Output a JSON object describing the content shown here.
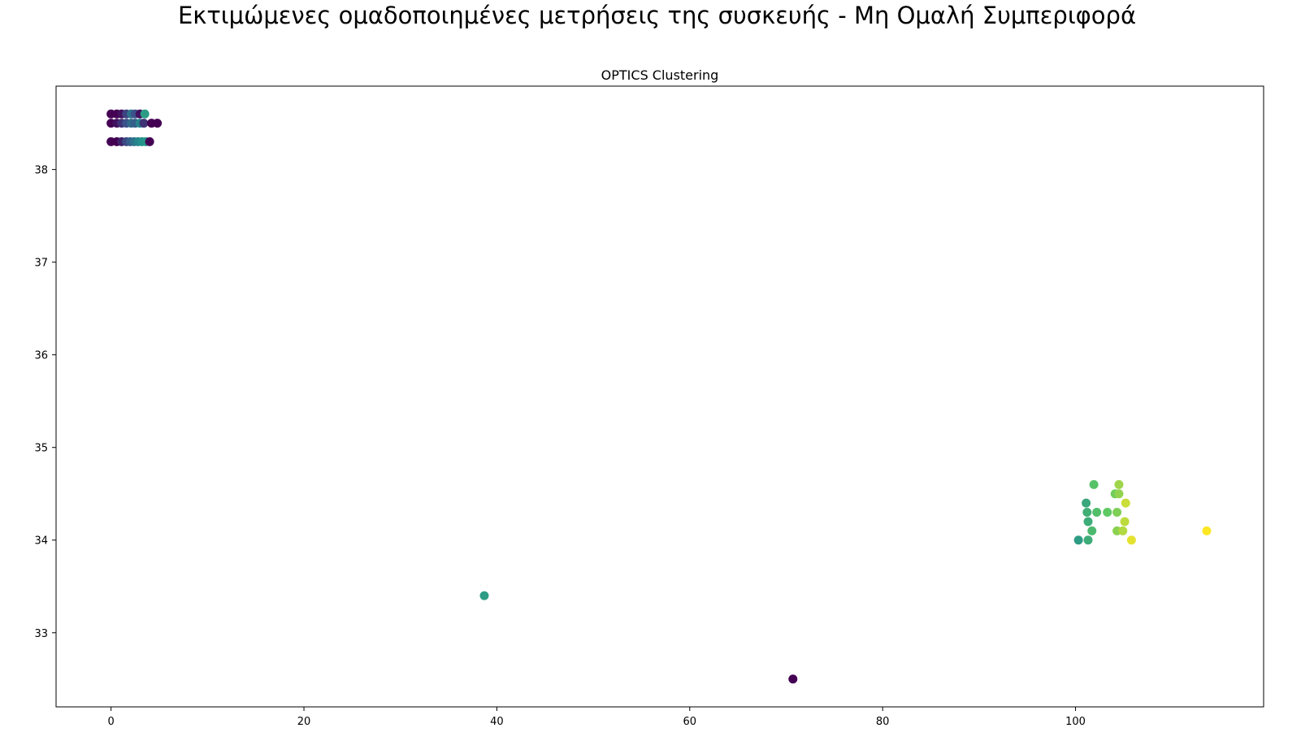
{
  "figure": {
    "suptitle": "Εκτιμώμενες ομαδοποιημένες μετρήσεις της συσκευής - Μη Ομαλή Συμπεριφορά"
  },
  "chart_data": {
    "type": "scatter",
    "title": "OPTICS Clustering",
    "xlabel": "",
    "ylabel": "",
    "xlim": [
      -5.7,
      119.5
    ],
    "ylim": [
      32.2,
      38.9
    ],
    "x_ticks": [
      0,
      20,
      40,
      60,
      80,
      100
    ],
    "y_ticks": [
      33,
      34,
      35,
      36,
      37,
      38
    ],
    "grid": false,
    "colormap": "viridis",
    "color_range": [
      0,
      1
    ],
    "points": [
      {
        "x": 0.0,
        "y": 38.6,
        "c": 0.0
      },
      {
        "x": 0.6,
        "y": 38.6,
        "c": 0.0
      },
      {
        "x": 1.1,
        "y": 38.6,
        "c": 0.05
      },
      {
        "x": 1.6,
        "y": 38.6,
        "c": 0.2
      },
      {
        "x": 2.1,
        "y": 38.6,
        "c": 0.38
      },
      {
        "x": 2.5,
        "y": 38.6,
        "c": 0.25
      },
      {
        "x": 3.0,
        "y": 38.6,
        "c": 0.05
      },
      {
        "x": 3.5,
        "y": 38.6,
        "c": 0.55
      },
      {
        "x": 0.0,
        "y": 38.5,
        "c": 0.0
      },
      {
        "x": 0.6,
        "y": 38.5,
        "c": 0.05
      },
      {
        "x": 1.1,
        "y": 38.5,
        "c": 0.15
      },
      {
        "x": 1.6,
        "y": 38.5,
        "c": 0.25
      },
      {
        "x": 2.1,
        "y": 38.5,
        "c": 0.35
      },
      {
        "x": 2.5,
        "y": 38.5,
        "c": 0.3
      },
      {
        "x": 3.0,
        "y": 38.5,
        "c": 0.45
      },
      {
        "x": 3.4,
        "y": 38.5,
        "c": 0.15
      },
      {
        "x": 4.2,
        "y": 38.5,
        "c": 0.0
      },
      {
        "x": 4.8,
        "y": 38.5,
        "c": 0.0
      },
      {
        "x": 0.0,
        "y": 38.3,
        "c": 0.0
      },
      {
        "x": 0.6,
        "y": 38.3,
        "c": 0.0
      },
      {
        "x": 1.1,
        "y": 38.3,
        "c": 0.1
      },
      {
        "x": 1.6,
        "y": 38.3,
        "c": 0.22
      },
      {
        "x": 2.0,
        "y": 38.3,
        "c": 0.3
      },
      {
        "x": 2.4,
        "y": 38.3,
        "c": 0.38
      },
      {
        "x": 2.8,
        "y": 38.3,
        "c": 0.45
      },
      {
        "x": 3.2,
        "y": 38.3,
        "c": 0.5
      },
      {
        "x": 3.6,
        "y": 38.3,
        "c": 0.52
      },
      {
        "x": 4.0,
        "y": 38.3,
        "c": 0.0
      },
      {
        "x": 38.7,
        "y": 33.4,
        "c": 0.55
      },
      {
        "x": 70.7,
        "y": 32.5,
        "c": 0.0
      },
      {
        "x": 100.3,
        "y": 34.0,
        "c": 0.55
      },
      {
        "x": 101.3,
        "y": 34.0,
        "c": 0.62
      },
      {
        "x": 101.1,
        "y": 34.4,
        "c": 0.6
      },
      {
        "x": 101.2,
        "y": 34.3,
        "c": 0.63
      },
      {
        "x": 101.3,
        "y": 34.2,
        "c": 0.62
      },
      {
        "x": 101.7,
        "y": 34.1,
        "c": 0.68
      },
      {
        "x": 101.9,
        "y": 34.6,
        "c": 0.72
      },
      {
        "x": 102.2,
        "y": 34.3,
        "c": 0.7
      },
      {
        "x": 103.3,
        "y": 34.3,
        "c": 0.75
      },
      {
        "x": 104.1,
        "y": 34.5,
        "c": 0.78
      },
      {
        "x": 104.3,
        "y": 34.3,
        "c": 0.8
      },
      {
        "x": 104.3,
        "y": 34.1,
        "c": 0.82
      },
      {
        "x": 104.5,
        "y": 34.6,
        "c": 0.85
      },
      {
        "x": 104.5,
        "y": 34.5,
        "c": 0.83
      },
      {
        "x": 104.9,
        "y": 34.1,
        "c": 0.88
      },
      {
        "x": 105.1,
        "y": 34.2,
        "c": 0.9
      },
      {
        "x": 105.2,
        "y": 34.4,
        "c": 0.92
      },
      {
        "x": 105.8,
        "y": 34.0,
        "c": 0.96
      },
      {
        "x": 113.6,
        "y": 34.1,
        "c": 1.0
      }
    ]
  }
}
